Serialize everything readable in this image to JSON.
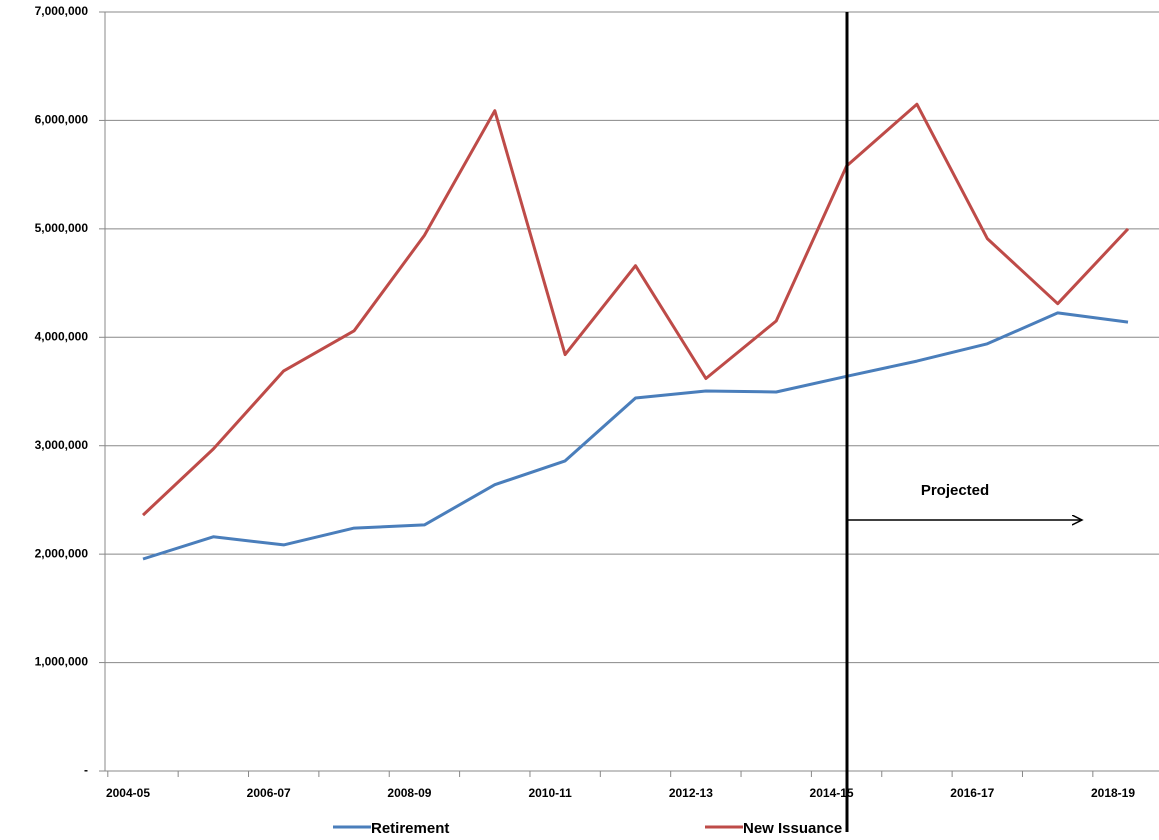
{
  "chart_data": {
    "type": "line",
    "categories": [
      "2004-05",
      null,
      "2006-07",
      null,
      "2008-09",
      null,
      "2010-11",
      null,
      "2012-13",
      null,
      "2014-15",
      null,
      "2016-17",
      null,
      "2018-19"
    ],
    "series": [
      {
        "name": "Retirement",
        "color": "#4a7ebb",
        "values": [
          1955000,
          2160000,
          2085000,
          2240000,
          2270000,
          2640000,
          2860000,
          3440000,
          3505000,
          3495000,
          3640000,
          3780000,
          3940000,
          4225000,
          4140000
        ]
      },
      {
        "name": "New Issuance",
        "color": "#be4b48",
        "values": [
          2360000,
          2970000,
          3690000,
          4060000,
          4940000,
          6090000,
          3840000,
          4660000,
          3620000,
          4150000,
          5580000,
          6150000,
          4910000,
          4310000,
          5000000
        ]
      }
    ],
    "ylim": [
      0,
      7000000
    ],
    "yticks": [
      {
        "value": 0,
        "label": "-"
      },
      {
        "value": 1000000,
        "label": "1,000,000"
      },
      {
        "value": 2000000,
        "label": "2,000,000"
      },
      {
        "value": 3000000,
        "label": "3,000,000"
      },
      {
        "value": 4000000,
        "label": "4,000,000"
      },
      {
        "value": 5000000,
        "label": "5,000,000"
      },
      {
        "value": 6000000,
        "label": "6,000,000"
      },
      {
        "value": 7000000,
        "label": "7,000,000"
      }
    ],
    "grid": true,
    "annotation": "Projected"
  }
}
